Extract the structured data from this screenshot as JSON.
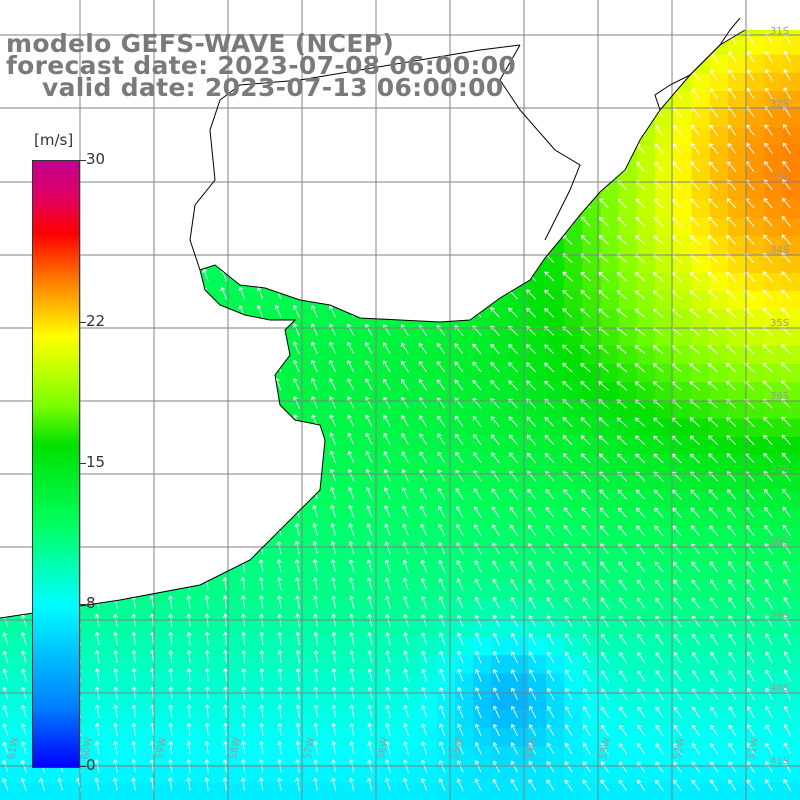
{
  "title": {
    "line1": "modelo GEFS-WAVE (NCEP)",
    "line2": "forecast date: 2023-07-08 06:00:00",
    "line3": "valid date: 2023-07-13 06:00:00"
  },
  "colorbar": {
    "unit": "[m/s]",
    "min": 0,
    "max": 30,
    "ticks": [
      "0",
      "8",
      "15",
      "22",
      "30"
    ],
    "tick_values": [
      0,
      8,
      15,
      22,
      30
    ],
    "colors": [
      "#0000ff",
      "#0080ff",
      "#00ffff",
      "#00ff60",
      "#00e000",
      "#80ff00",
      "#ffff00",
      "#ff8000",
      "#ff0000",
      "#c00090"
    ]
  },
  "map": {
    "lat_labels": [
      "31S",
      "32S",
      "33S",
      "34S",
      "35S",
      "36S",
      "37S",
      "38S",
      "39S",
      "40S",
      "41S"
    ],
    "lon_labels": [
      "61W",
      "60W",
      "59W",
      "58W",
      "57W",
      "56W",
      "55W",
      "54W",
      "53W",
      "52W",
      "51W"
    ],
    "lat_range": [
      -41,
      -30
    ],
    "lon_range": [
      -61,
      -50
    ],
    "wind_direction": "from southeast",
    "land_color": "#ffffff",
    "grid_color": "#808080",
    "coast_color": "#000000"
  }
}
